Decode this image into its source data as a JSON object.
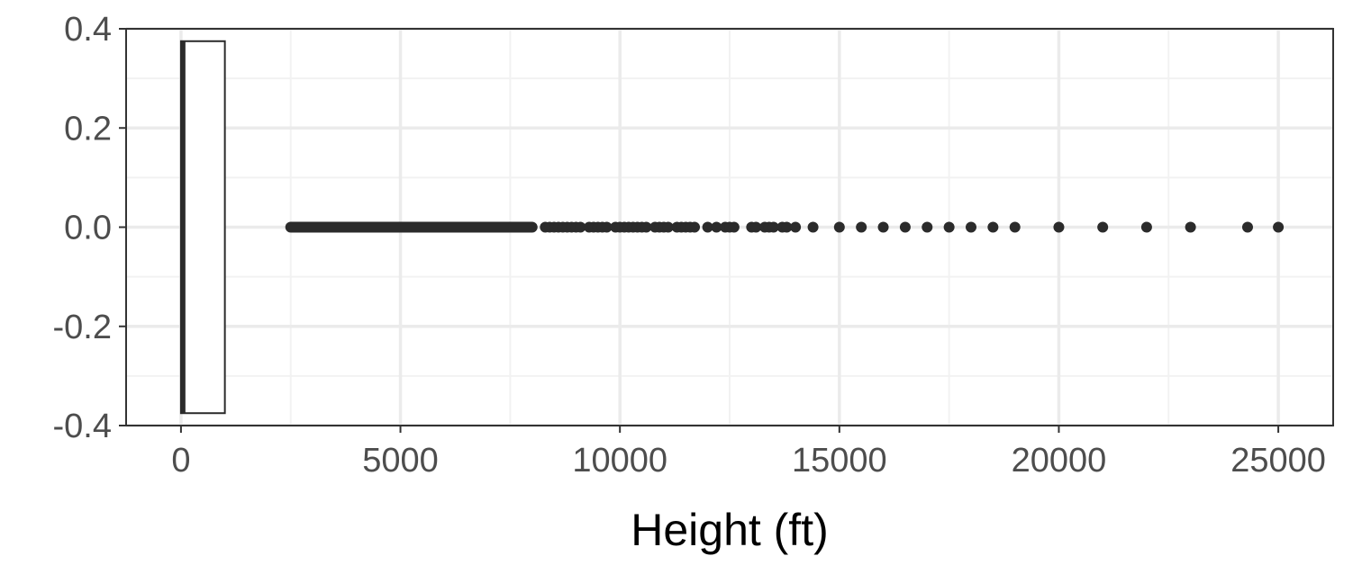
{
  "chart_data": {
    "type": "boxplot",
    "orientation": "horizontal",
    "xlabel": "Height (ft)",
    "ylabel": "",
    "xlim": [
      -1250,
      26250
    ],
    "ylim": [
      -0.4,
      0.4
    ],
    "x_ticks": [
      0,
      5000,
      10000,
      15000,
      20000,
      25000
    ],
    "x_tick_labels": [
      "0",
      "5000",
      "10000",
      "15000",
      "20000",
      "25000"
    ],
    "y_ticks": [
      0.4,
      0.2,
      0.0,
      -0.2,
      -0.4
    ],
    "y_tick_labels": [
      "0.4",
      "0.2",
      "0.0",
      "-0.2",
      "-0.4"
    ],
    "grid": true,
    "box": {
      "y_center": 0.0,
      "y_half_width": 0.375,
      "min": 0,
      "q1": 0,
      "median": 50,
      "q3": 1000,
      "whisker_high": 1000
    },
    "outlier_segment": {
      "from": 2500,
      "to": 8000
    },
    "outliers": [
      8300,
      8400,
      8500,
      8600,
      8700,
      8800,
      8900,
      9000,
      9100,
      9300,
      9400,
      9500,
      9600,
      9700,
      9900,
      10000,
      10100,
      10200,
      10300,
      10400,
      10500,
      10600,
      10800,
      10900,
      11000,
      11100,
      11300,
      11400,
      11500,
      11600,
      11700,
      12000,
      12200,
      12400,
      12500,
      12600,
      13000,
      13100,
      13300,
      13400,
      13500,
      13700,
      13800,
      14000,
      14400,
      15000,
      15500,
      16000,
      16500,
      17000,
      17500,
      18000,
      18500,
      19000,
      20000,
      21000,
      22000,
      23000,
      24300,
      25000
    ],
    "colors": {
      "grid_major": "#ebebeb",
      "grid_minor": "#f2f2f2",
      "panel_border": "#333333",
      "points": "#2b2b2b",
      "box_fill": "#ffffff",
      "tick_text": "#4d4d4d",
      "title_text": "#000000"
    }
  }
}
